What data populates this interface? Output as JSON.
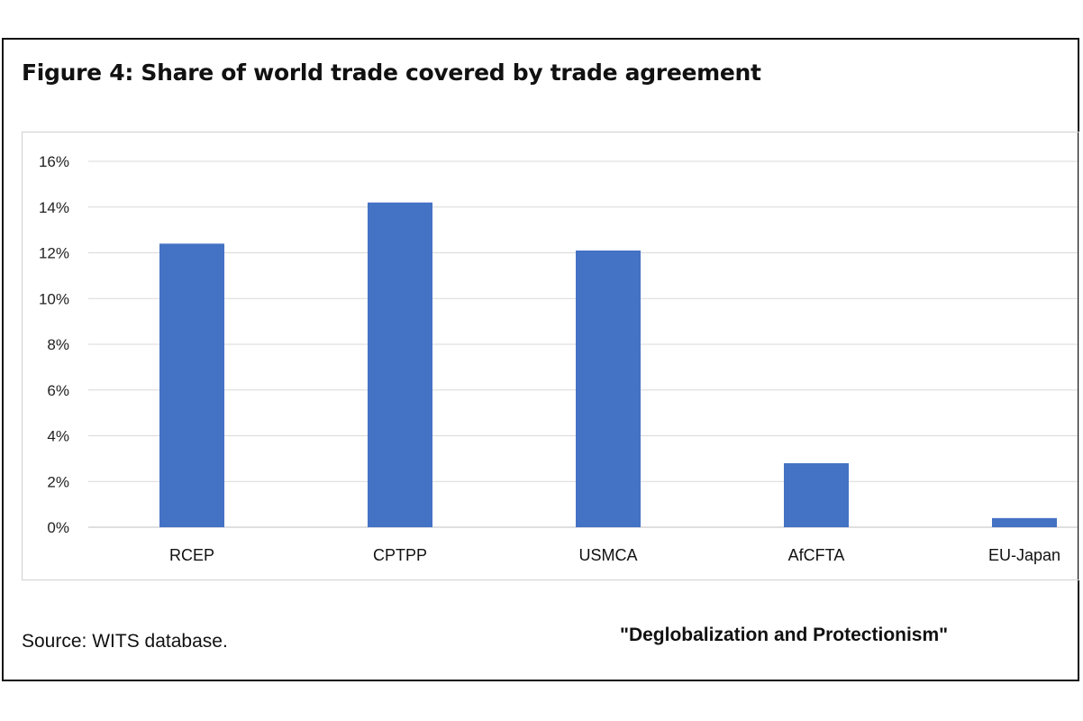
{
  "figure": {
    "title": "Figure 4: Share of world trade covered by trade agreement",
    "source": "Source: WITS database.",
    "stamp": "\"Deglobalization and Protectionism\""
  },
  "colors": {
    "bar": "#4472C4",
    "grid": "#d9d9d9",
    "text": "#111111"
  },
  "chart_data": {
    "type": "bar",
    "categories": [
      "RCEP",
      "CPTPP",
      "USMCA",
      "AfCFTA",
      "EU-Japan"
    ],
    "values": [
      12.4,
      14.2,
      12.1,
      2.8,
      0.4
    ],
    "ylim": [
      0,
      16
    ],
    "yticks": [
      0,
      2,
      4,
      6,
      8,
      10,
      12,
      14,
      16
    ],
    "ytick_labels": [
      "0%",
      "2%",
      "4%",
      "6%",
      "8%",
      "10%",
      "12%",
      "14%",
      "16%"
    ],
    "grid": true,
    "legend": "none"
  }
}
